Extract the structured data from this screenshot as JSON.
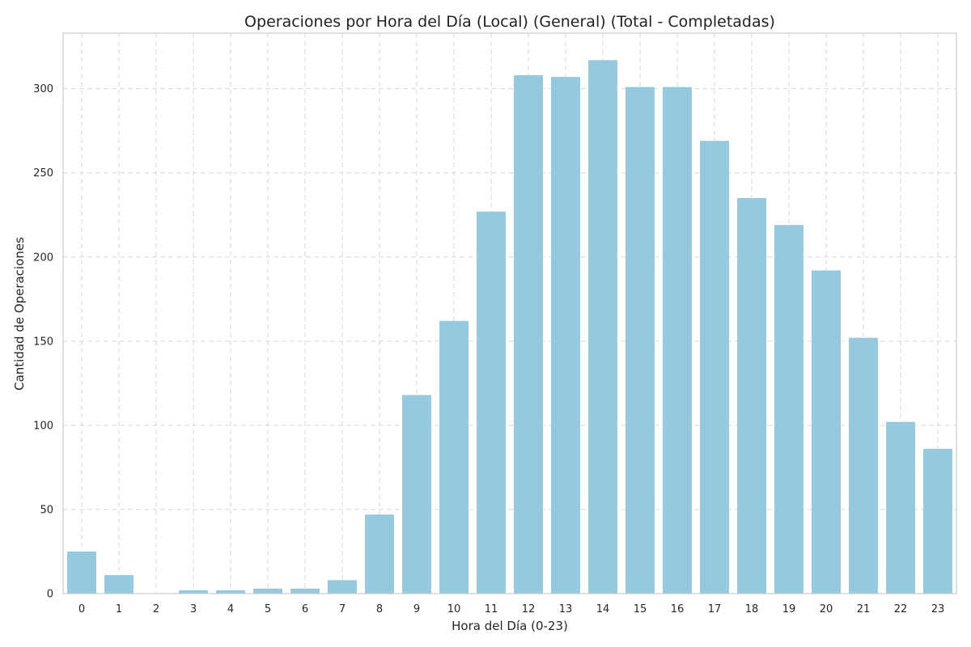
{
  "chart_data": {
    "type": "bar",
    "title": "Operaciones por Hora del Día (Local) (General) (Total - Completadas)",
    "xlabel": "Hora del Día (0-23)",
    "ylabel": "Cantidad de Operaciones",
    "categories": [
      "0",
      "1",
      "2",
      "3",
      "4",
      "5",
      "6",
      "7",
      "8",
      "9",
      "10",
      "11",
      "12",
      "13",
      "14",
      "15",
      "16",
      "17",
      "18",
      "19",
      "20",
      "21",
      "22",
      "23"
    ],
    "values": [
      25,
      11,
      0,
      2,
      2,
      3,
      3,
      8,
      47,
      118,
      162,
      227,
      308,
      307,
      317,
      301,
      301,
      269,
      235,
      219,
      192,
      152,
      102,
      86
    ],
    "ylim": [
      0,
      333
    ],
    "yticks": [
      "0",
      "50",
      "100",
      "150",
      "200",
      "250",
      "300"
    ],
    "grid": true,
    "bar_color": "#95c9df",
    "legend": "none"
  }
}
